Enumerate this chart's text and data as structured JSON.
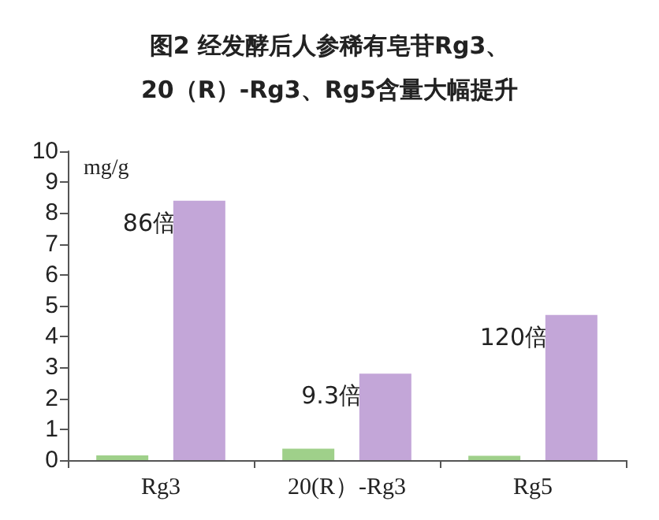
{
  "chart_data": {
    "type": "bar",
    "title": "图2 经发酵后人参稀有皂苷Rg3、\n20（R）-Rg3、Rg5含量大幅提升",
    "ylabel": "mg/g",
    "categories": [
      "Rg3",
      "20(R）-Rg3",
      "Rg5"
    ],
    "series": [
      {
        "color": "#9fd08a",
        "values": [
          0.15,
          0.37,
          0.14
        ]
      },
      {
        "color": "#c3a6d8",
        "values": [
          8.4,
          2.8,
          4.7
        ]
      }
    ],
    "ylim": [
      0,
      10
    ],
    "yticks": [
      0,
      1,
      2,
      3,
      4,
      5,
      6,
      7,
      8,
      9,
      10
    ],
    "grid": false,
    "annotations": [
      "86倍",
      "9.3倍",
      "120倍"
    ]
  }
}
